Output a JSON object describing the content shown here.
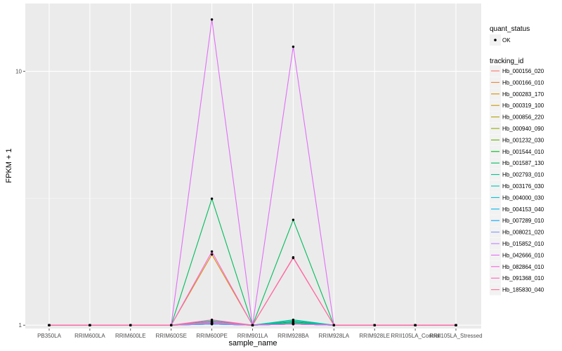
{
  "chart_data": {
    "type": "line",
    "xlabel": "sample_name",
    "ylabel": "FPKM + 1",
    "y_scale": "log10",
    "ylim": [
      0.97,
      18.5
    ],
    "yticks": [
      1,
      10
    ],
    "ytick_labels": [
      "1",
      "10"
    ],
    "grid": true,
    "categories": [
      "PB350LA",
      "RRIM600LA",
      "RRIM600LE",
      "RRIM600SE",
      "RRIM600PE",
      "RRIM901LA",
      "RRIM928BA",
      "RRIM928LA",
      "RRIM928LE",
      "RRII105LA_Control",
      "RRII105LA_Stressed"
    ],
    "legend_points": {
      "title": "quant_status",
      "items": [
        "OK"
      ]
    },
    "legend_lines_title": "tracking_id",
    "series": [
      {
        "name": "Hb_000156_020",
        "color": "#F8766D",
        "values": [
          1,
          1,
          1,
          1,
          1.01,
          1,
          1.01,
          1,
          1,
          1,
          1
        ]
      },
      {
        "name": "Hb_000166_010",
        "color": "#EC8239",
        "values": [
          1,
          1,
          1,
          1,
          1.02,
          1,
          1.02,
          1,
          1,
          1,
          1
        ]
      },
      {
        "name": "Hb_000283_170",
        "color": "#DB8E00",
        "values": [
          1,
          1,
          1,
          1,
          1.9,
          1,
          1.01,
          1,
          1,
          1,
          1
        ]
      },
      {
        "name": "Hb_000319_100",
        "color": "#C79800",
        "values": [
          1,
          1,
          1,
          1,
          1.03,
          1,
          1.02,
          1,
          1,
          1,
          1
        ]
      },
      {
        "name": "Hb_000856_220",
        "color": "#AEA200",
        "values": [
          1,
          1,
          1,
          1,
          1.01,
          1,
          1.01,
          1,
          1,
          1,
          1
        ]
      },
      {
        "name": "Hb_000940_090",
        "color": "#8FAA00",
        "values": [
          1,
          1,
          1,
          1,
          1.01,
          1,
          1.02,
          1,
          1,
          1,
          1
        ]
      },
      {
        "name": "Hb_001232_030",
        "color": "#64B200",
        "values": [
          1,
          1,
          1,
          1,
          1.02,
          1,
          1.01,
          1,
          1,
          1,
          1
        ]
      },
      {
        "name": "Hb_001544_010",
        "color": "#00B81B",
        "values": [
          1,
          1,
          1,
          1,
          1.02,
          1,
          1.03,
          1,
          1,
          1,
          1
        ]
      },
      {
        "name": "Hb_001587_130",
        "color": "#00BD5C",
        "values": [
          1,
          1,
          1,
          1,
          3.15,
          1,
          2.6,
          1,
          1,
          1,
          1
        ]
      },
      {
        "name": "Hb_002793_010",
        "color": "#00C08E",
        "values": [
          1,
          1,
          1,
          1,
          1.04,
          1,
          1.05,
          1,
          1,
          1,
          1
        ]
      },
      {
        "name": "Hb_003176_030",
        "color": "#00C1B7",
        "values": [
          1,
          1,
          1,
          1,
          1.02,
          1,
          1.04,
          1,
          1,
          1,
          1
        ]
      },
      {
        "name": "Hb_004000_030",
        "color": "#00BDD4",
        "values": [
          1,
          1,
          1,
          1,
          1.01,
          1,
          1.02,
          1,
          1,
          1,
          1
        ]
      },
      {
        "name": "Hb_004153_040",
        "color": "#00B5EE",
        "values": [
          1,
          1,
          1,
          1,
          1.02,
          1,
          1.01,
          1,
          1,
          1,
          1
        ]
      },
      {
        "name": "Hb_007289_010",
        "color": "#00A7FF",
        "values": [
          1,
          1,
          1,
          1,
          1.01,
          1,
          1.01,
          1,
          1,
          1,
          1
        ]
      },
      {
        "name": "Hb_008021_020",
        "color": "#7F96FF",
        "values": [
          1,
          1,
          1,
          1,
          1.01,
          1,
          1.01,
          1,
          1,
          1,
          1
        ]
      },
      {
        "name": "Hb_015852_010",
        "color": "#BC81FF",
        "values": [
          1,
          1,
          1,
          1,
          1.02,
          1,
          1.01,
          1,
          1,
          1,
          1
        ]
      },
      {
        "name": "Hb_042666_010",
        "color": "#E26EF7",
        "values": [
          1,
          1,
          1,
          1,
          16.0,
          1,
          12.5,
          1,
          1,
          1,
          1
        ]
      },
      {
        "name": "Hb_082864_010",
        "color": "#F863DF",
        "values": [
          1,
          1,
          1,
          1,
          1.95,
          1,
          1.01,
          1,
          1,
          1,
          1
        ]
      },
      {
        "name": "Hb_091368_010",
        "color": "#FF62BF",
        "values": [
          1,
          1,
          1,
          1,
          1.05,
          1,
          1.84,
          1,
          1,
          1,
          1
        ]
      },
      {
        "name": "Hb_185830_040",
        "color": "#FF6A98",
        "values": [
          1,
          1,
          1,
          1,
          1.03,
          1,
          1.85,
          1,
          1,
          1,
          1
        ]
      }
    ]
  }
}
